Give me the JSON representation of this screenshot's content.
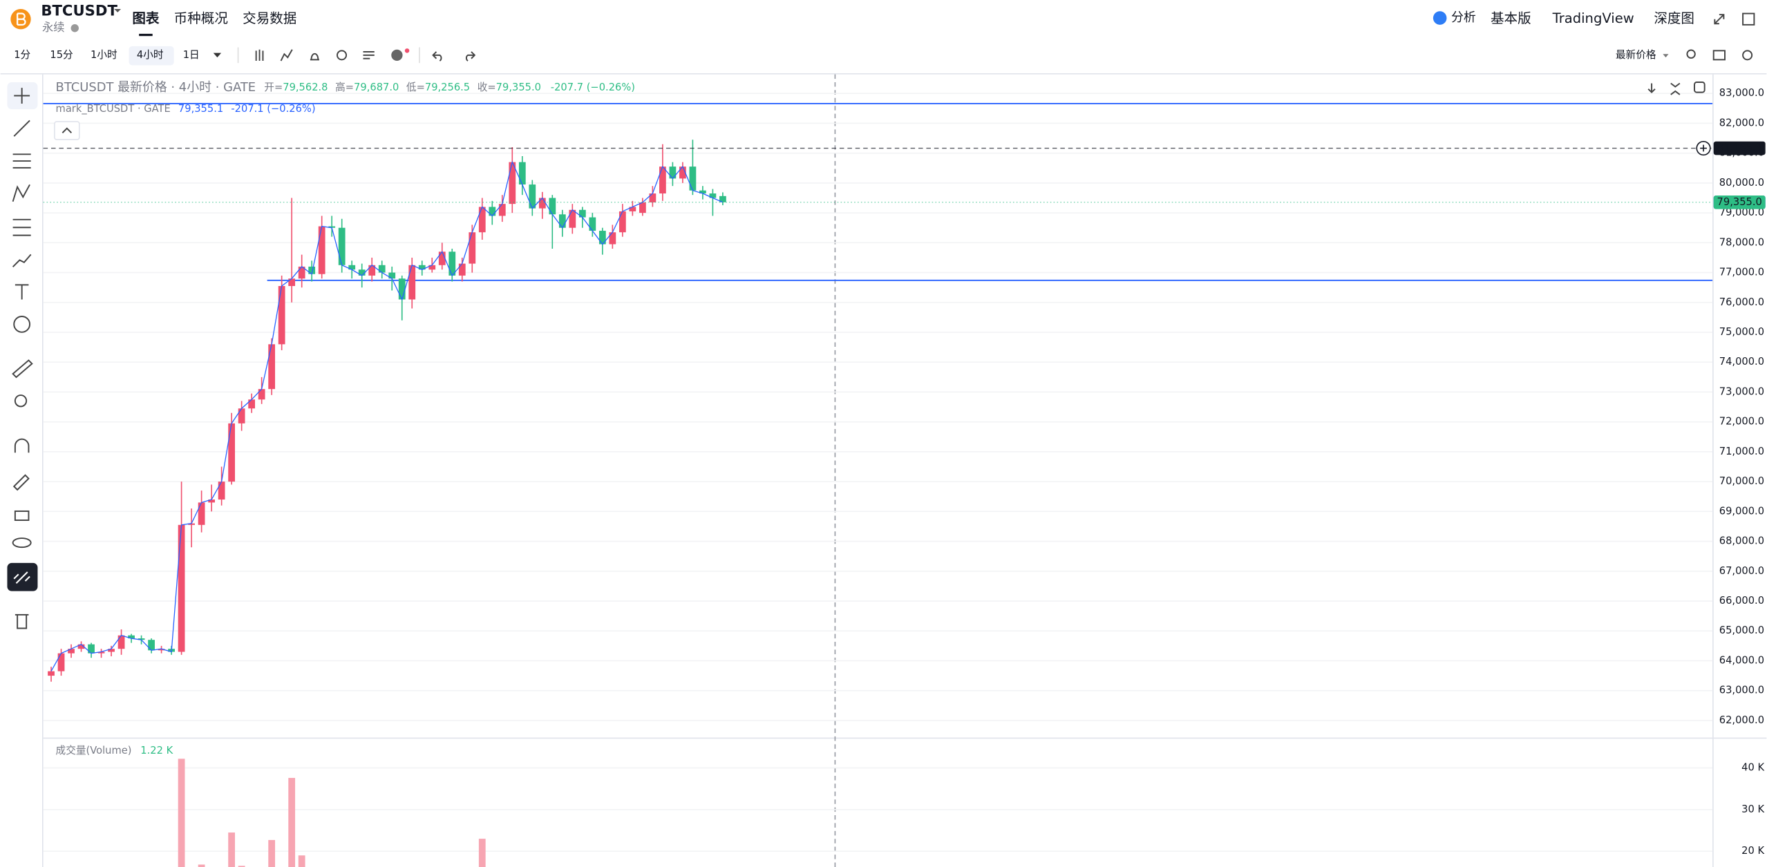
{
  "header": {
    "symbol": "BTCUSDT",
    "subtitle": "永续",
    "tabs": [
      "图表",
      "币种概况",
      "交易数据"
    ],
    "right": [
      "分析",
      "基本版",
      "TradingView",
      "深度图"
    ]
  },
  "toolbar": {
    "intervals": [
      "1分",
      "15分",
      "1小时",
      "4小时",
      "1日"
    ],
    "price_type": "最新价格"
  },
  "chart_data": [
    {
      "type": "candlestick",
      "title": "BTCUSDT 最新价格 · 4小时 · GATE",
      "legend": [
        {
          "label": "开=",
          "value": "79,562.8"
        },
        {
          "label": "高=",
          "value": "79,687.0"
        },
        {
          "label": "低=",
          "value": "79,256.5"
        },
        {
          "label": "收=",
          "value": "79,355.0"
        }
      ],
      "change": "-207.7 (−0.26%)",
      "mark_legend": {
        "name": "mark_BTCUSDT · GATE",
        "value": "79,355.1",
        "change": "-207.1 (−0.26%)"
      },
      "up_color": "#f0506e",
      "down_color": "#2ebd85",
      "line_color": "#2962ff",
      "open": [
        63500,
        63650,
        64250,
        64400,
        64550,
        64250,
        64300,
        64400,
        64850,
        64750,
        64700,
        64350,
        64400,
        64300,
        68550,
        68550,
        69300,
        69400,
        70000,
        71950,
        72450,
        72750,
        73100,
        74600,
        76550,
        76800,
        77200,
        76950,
        78550,
        78500,
        77250,
        77100,
        76900,
        77250,
        77000,
        76800,
        76100,
        77250,
        77100,
        77250,
        77700,
        76900,
        77300,
        78350,
        79200,
        78900,
        79300,
        80700,
        79950,
        79150,
        79500,
        78950,
        78500,
        79100,
        78850,
        78400,
        77950,
        78350,
        79050,
        79000,
        79350,
        79650,
        80550,
        80150,
        80550,
        79750,
        79650,
        79562.8
      ],
      "high": [
        63800,
        64400,
        64550,
        64650,
        64600,
        64400,
        64500,
        65050,
        64900,
        64850,
        64750,
        64500,
        64500,
        70000,
        69100,
        69700,
        69900,
        70500,
        72300,
        72700,
        72950,
        73500,
        74800,
        76900,
        79500,
        77600,
        77400,
        78900,
        78900,
        78800,
        77400,
        77300,
        77500,
        77400,
        77200,
        76900,
        77500,
        77400,
        77500,
        78000,
        77800,
        77500,
        78600,
        79500,
        79400,
        79600,
        81200,
        80900,
        80100,
        79700,
        79600,
        79100,
        79300,
        79200,
        79000,
        78500,
        78600,
        79300,
        79400,
        79500,
        79900,
        81300,
        80700,
        80700,
        81450,
        79900,
        79800,
        79687
      ],
      "low": [
        63300,
        63500,
        64100,
        64300,
        64100,
        64100,
        64150,
        64200,
        64600,
        64550,
        64250,
        64250,
        64200,
        64200,
        67800,
        68300,
        69000,
        69200,
        69900,
        71700,
        72300,
        72600,
        72900,
        74400,
        76000,
        76500,
        76700,
        76800,
        78200,
        77000,
        76800,
        76500,
        76700,
        76800,
        76400,
        75400,
        75800,
        76900,
        77000,
        77100,
        76700,
        76700,
        77000,
        78100,
        78600,
        78700,
        79000,
        79600,
        78900,
        78800,
        77800,
        78200,
        78300,
        78500,
        78200,
        77600,
        77800,
        78200,
        78900,
        78900,
        79200,
        79400,
        79900,
        80000,
        79600,
        79450,
        78900,
        79256.5
      ],
      "close": [
        63650,
        64250,
        64400,
        64550,
        64250,
        64300,
        64400,
        64850,
        64750,
        64700,
        64350,
        64400,
        64300,
        68550,
        68600,
        69300,
        69400,
        70000,
        71950,
        72450,
        72750,
        73100,
        74600,
        76550,
        76800,
        77200,
        76950,
        78550,
        78500,
        77250,
        77100,
        76900,
        77250,
        77000,
        76800,
        76100,
        77250,
        77100,
        77250,
        77700,
        76900,
        77300,
        78350,
        79200,
        78900,
        79300,
        80700,
        79950,
        79150,
        79500,
        78950,
        78500,
        79100,
        78850,
        78400,
        77950,
        78350,
        79050,
        79200,
        79350,
        79650,
        80550,
        80150,
        80550,
        79750,
        79650,
        79500,
        79355
      ],
      "ylim": [
        61430,
        83640
      ],
      "yticks": [
        {
          "value": 83000,
          "label": "83,000.0"
        },
        {
          "value": 82000,
          "label": "82,000.0"
        },
        {
          "value": 81000,
          "label": "81,000.0"
        },
        {
          "value": 80000,
          "label": "80,000.0"
        },
        {
          "value": 79000,
          "label": "79,000.0"
        },
        {
          "value": 78000,
          "label": "78,000.0"
        },
        {
          "value": 77000,
          "label": "77,000.0"
        },
        {
          "value": 76000,
          "label": "76,000.0"
        },
        {
          "value": 75000,
          "label": "75,000.0"
        },
        {
          "value": 74000,
          "label": "74,000.0"
        },
        {
          "value": 73000,
          "label": "73,000.0"
        },
        {
          "value": 72000,
          "label": "72,000.0"
        },
        {
          "value": 71000,
          "label": "71,000.0"
        },
        {
          "value": 70000,
          "label": "70,000.0"
        },
        {
          "value": 69000,
          "label": "69,000.0"
        },
        {
          "value": 68000,
          "label": "68,000.0"
        },
        {
          "value": 67000,
          "label": "67,000.0"
        },
        {
          "value": 66000,
          "label": "66,000.0"
        },
        {
          "value": 65000,
          "label": "65,000.0"
        },
        {
          "value": 64000,
          "label": "64,000.0"
        },
        {
          "value": 63000,
          "label": "63,000.0"
        },
        {
          "value": 62000,
          "label": "62,000.0"
        }
      ],
      "lines": [
        {
          "value": 82660,
          "color": "#2962ff",
          "from_index": 0
        },
        {
          "value": 76740,
          "color": "#2962ff",
          "from_index": 22
        }
      ],
      "price_labels": [
        {
          "value": 81165.3,
          "label": "81,165.3",
          "color": "#131722",
          "dashed": true
        },
        {
          "value": 79355.1,
          "label": "79,355.1",
          "color": "#2962ff",
          "dashed": false
        },
        {
          "value": 79355,
          "label": "79,355.0",
          "color": "#2ebd85",
          "dashed": true
        }
      ]
    },
    {
      "type": "bar",
      "title": "成交量(Volume)",
      "value_text": "1.22 K",
      "color": "#f7a5b2",
      "values": [
        null,
        null,
        null,
        null,
        null,
        null,
        null,
        null,
        null,
        null,
        null,
        null,
        null,
        42200,
        null,
        16800,
        null,
        null,
        24500,
        16500,
        null,
        null,
        22700,
        null,
        37600,
        19000,
        null,
        null,
        null,
        null,
        null,
        null,
        null,
        null,
        null,
        null,
        null,
        null,
        null,
        null,
        null,
        null,
        null,
        23000,
        null,
        null,
        null,
        null,
        null,
        null,
        null,
        null,
        null,
        null,
        null,
        null,
        null,
        null,
        null,
        null,
        null,
        null,
        null,
        null,
        null,
        null,
        null,
        null
      ],
      "ylim": [
        16220,
        47030
      ],
      "yticks": [
        {
          "value": 40000,
          "label": "40 K"
        },
        {
          "value": 30000,
          "label": "30 K"
        },
        {
          "value": 20000,
          "label": "20 K"
        }
      ]
    }
  ]
}
